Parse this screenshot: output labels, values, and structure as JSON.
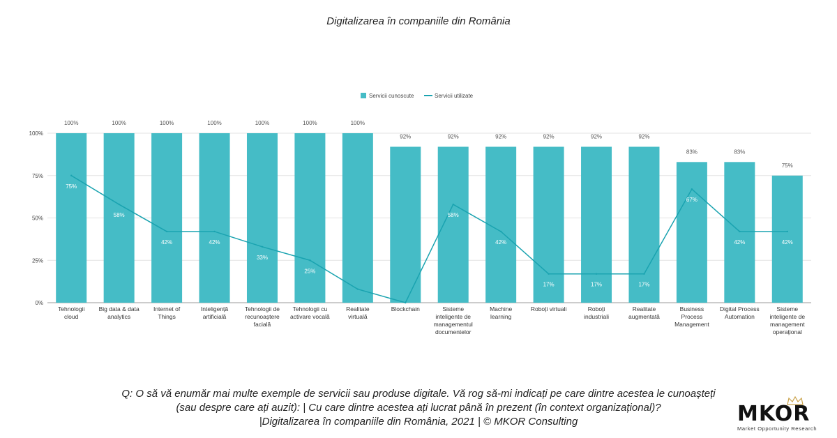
{
  "title": "Digitalizarea în companiile din România",
  "caption": {
    "line1": "Q: O să vă enumăr mai multe exemple de servicii sau produse digitale. Vă rog să-mi indicați pe care dintre acestea le cunoașteți",
    "line2": "(sau despre care ați auzit): | Cu care dintre acestea ați lucrat până în prezent (în context organizațional)?",
    "line3": "|Digitalizarea în companiile din România, 2021 | © MKOR Consulting"
  },
  "logo": {
    "text": "MKOR",
    "subtitle": "Market Opportunity Research"
  },
  "colors": {
    "bar": "#45bcc6",
    "line": "#1aa3b0",
    "grid": "#e3e3e3"
  },
  "chart_data": {
    "type": "bar",
    "categories": [
      [
        "Tehnologii",
        "cloud"
      ],
      [
        "Big data & data",
        "analytics"
      ],
      [
        "Internet of",
        "Things"
      ],
      [
        "Inteligență",
        "artificială"
      ],
      [
        "Tehnologii de",
        "recunoaștere",
        "facială"
      ],
      [
        "Tehnologii cu",
        "activare vocală"
      ],
      [
        "Realitate",
        "virtuală"
      ],
      [
        "Blockchain"
      ],
      [
        "Sisteme",
        "inteligente de",
        "managementul",
        "documentelor"
      ],
      [
        "Machine",
        "learning"
      ],
      [
        "Roboți virtuali"
      ],
      [
        "Roboți",
        "industriali"
      ],
      [
        "Realitate",
        "augmentată"
      ],
      [
        "Business",
        "Process",
        "Management"
      ],
      [
        "Digital Process",
        "Automation"
      ],
      [
        "Sisteme",
        "inteligente de",
        "management",
        "operațional"
      ]
    ],
    "series": [
      {
        "name": "Servicii cunoscute",
        "type": "bar",
        "values": [
          100,
          100,
          100,
          100,
          100,
          100,
          100,
          92,
          92,
          92,
          92,
          92,
          92,
          83,
          83,
          75
        ],
        "labels": [
          "100%",
          "100%",
          "100%",
          "100%",
          "100%",
          "100%",
          "100%",
          "92%",
          "92%",
          "92%",
          "92%",
          "92%",
          "92%",
          "83%",
          "83%",
          "75%"
        ]
      },
      {
        "name": "Servicii utilizate",
        "type": "line",
        "values": [
          75,
          58,
          42,
          42,
          33,
          25,
          8,
          0,
          58,
          42,
          17,
          17,
          17,
          67,
          42,
          42
        ],
        "labels": [
          "75%",
          "58%",
          "42%",
          "42%",
          "33%",
          "25%",
          "",
          "",
          "58%",
          "42%",
          "17%",
          "17%",
          "17%",
          "67%",
          "42%",
          "42%"
        ]
      }
    ],
    "yticks": [
      "0%",
      "25%",
      "50%",
      "75%",
      "100%"
    ],
    "ytick_values": [
      0,
      25,
      50,
      75,
      100
    ],
    "ylim": [
      0,
      100
    ],
    "legend_position": "top-center",
    "grid": true
  }
}
